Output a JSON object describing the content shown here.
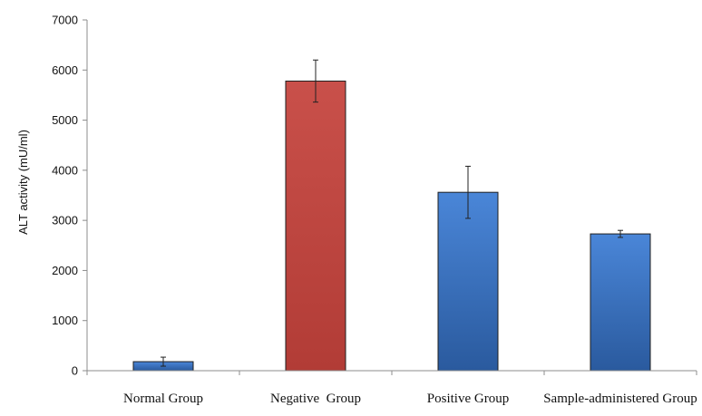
{
  "chart_data": {
    "type": "bar",
    "categories": [
      "Normal Group",
      "Negative  Group",
      "Positive Group",
      "Sample-administered Group"
    ],
    "values": [
      180,
      5780,
      3560,
      2730
    ],
    "errors": [
      90,
      420,
      520,
      70
    ],
    "ylabel": "ALT activity (mU/ml)",
    "xlabel": "",
    "ylim": [
      0,
      7000
    ],
    "yticks": [
      "0",
      "1000",
      "2000",
      "3000",
      "4000",
      "5000",
      "6000",
      "7000"
    ],
    "grid": false,
    "legend": "none",
    "colors": {
      "default_bar_top": "#4a86d8",
      "default_bar_bottom": "#2a5a9e",
      "highlight_bar_top": "#c9504a",
      "highlight_bar_bottom": "#b23c36",
      "bar_edge": "#1f1f1f"
    },
    "highlight_index": 1
  }
}
